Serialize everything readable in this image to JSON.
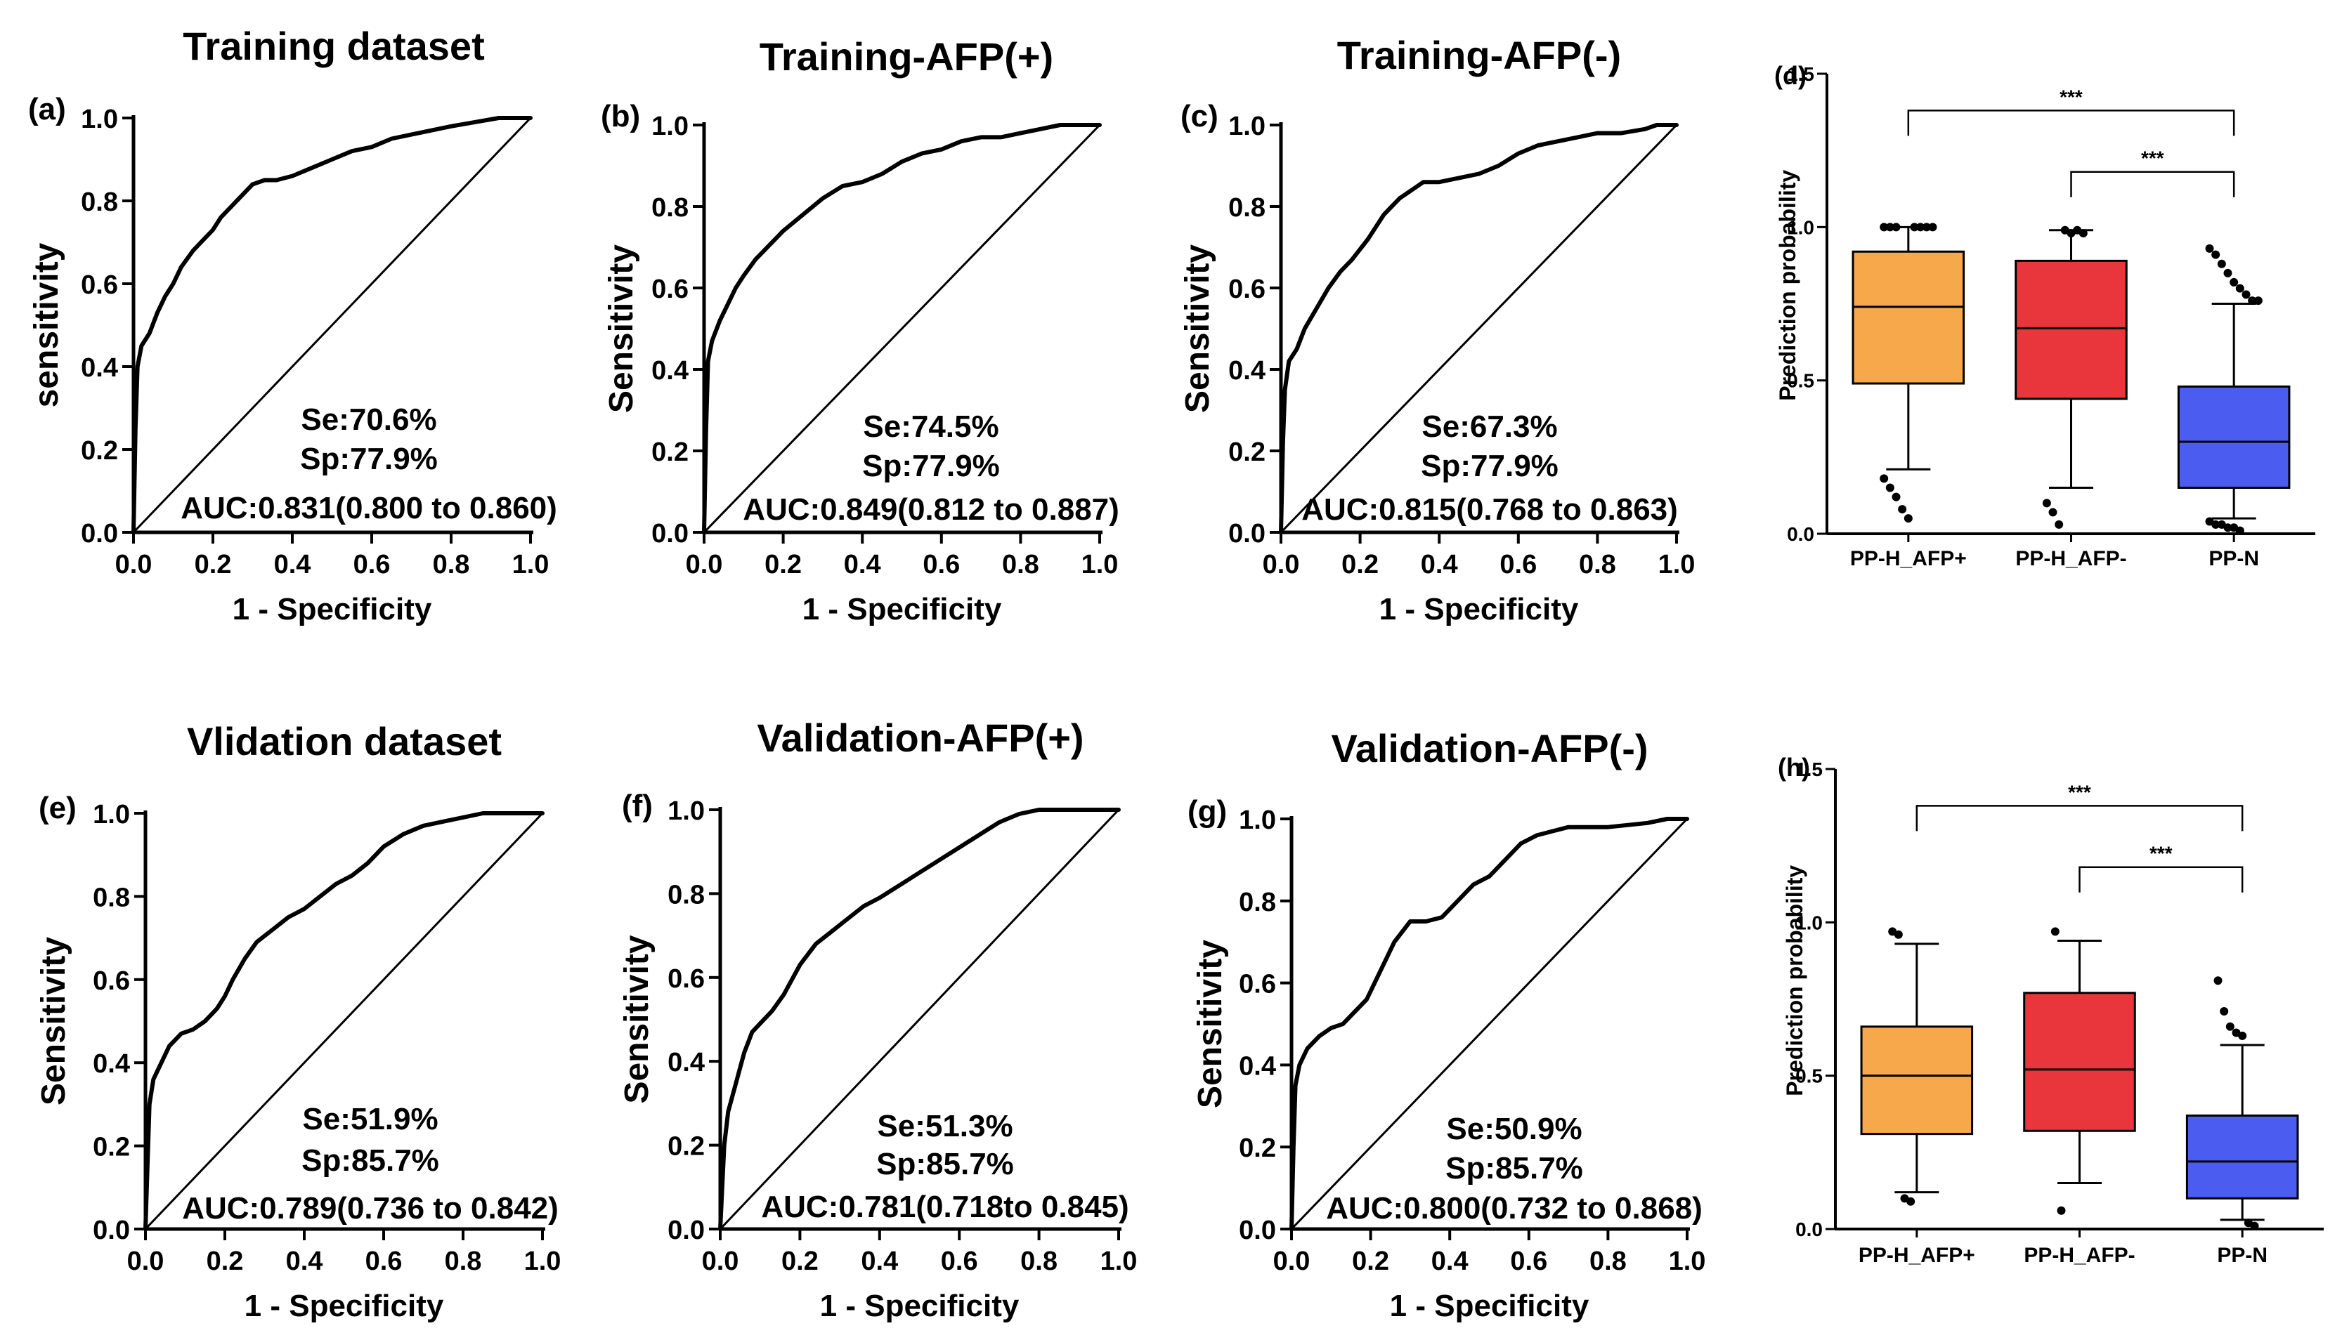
{
  "chart_data": [
    {
      "panel": "(a)",
      "type": "line",
      "title": "Training dataset",
      "xlabel": "1 - Specificity",
      "ylabel": "sensitivity",
      "xlim": [
        0,
        1
      ],
      "ylim": [
        0,
        1
      ],
      "ticks": [
        "0.0",
        "0.2",
        "0.4",
        "0.6",
        "0.8",
        "1.0"
      ],
      "stats": [
        "Se:70.6%",
        "Sp:77.9%",
        "AUC:0.831(0.800 to 0.860)"
      ],
      "series": [
        {
          "name": "ROC",
          "x": [
            0,
            0.005,
            0.01,
            0.02,
            0.04,
            0.06,
            0.08,
            0.1,
            0.12,
            0.15,
            0.18,
            0.2,
            0.22,
            0.26,
            0.3,
            0.33,
            0.36,
            0.4,
            0.45,
            0.5,
            0.55,
            0.6,
            0.65,
            0.7,
            0.75,
            0.8,
            0.86,
            0.92,
            1.0
          ],
          "y": [
            0,
            0.25,
            0.4,
            0.45,
            0.48,
            0.53,
            0.57,
            0.6,
            0.64,
            0.68,
            0.71,
            0.73,
            0.76,
            0.8,
            0.84,
            0.85,
            0.85,
            0.86,
            0.88,
            0.9,
            0.92,
            0.93,
            0.95,
            0.96,
            0.97,
            0.98,
            0.99,
            1.0,
            1.0
          ]
        },
        {
          "name": "Reference",
          "x": [
            0,
            1
          ],
          "y": [
            0,
            1
          ]
        }
      ]
    },
    {
      "panel": "(b)",
      "type": "line",
      "title": "Training-AFP(+)",
      "xlabel": "1 - Specificity",
      "ylabel": "Sensitivity",
      "xlim": [
        0,
        1
      ],
      "ylim": [
        0,
        1
      ],
      "ticks": [
        "0.0",
        "0.2",
        "0.4",
        "0.6",
        "0.8",
        "1.0"
      ],
      "stats": [
        "Se:74.5%",
        "Sp:77.9%",
        "AUC:0.849(0.812 to 0.887)"
      ],
      "series": [
        {
          "name": "ROC",
          "x": [
            0,
            0.005,
            0.01,
            0.02,
            0.04,
            0.06,
            0.08,
            0.1,
            0.13,
            0.16,
            0.2,
            0.25,
            0.3,
            0.35,
            0.4,
            0.45,
            0.5,
            0.55,
            0.6,
            0.65,
            0.7,
            0.75,
            0.8,
            0.85,
            0.9,
            1.0
          ],
          "y": [
            0,
            0.25,
            0.42,
            0.47,
            0.52,
            0.56,
            0.6,
            0.63,
            0.67,
            0.7,
            0.74,
            0.78,
            0.82,
            0.85,
            0.86,
            0.88,
            0.91,
            0.93,
            0.94,
            0.96,
            0.97,
            0.97,
            0.98,
            0.99,
            1.0,
            1.0
          ]
        },
        {
          "name": "Reference",
          "x": [
            0,
            1
          ],
          "y": [
            0,
            1
          ]
        }
      ]
    },
    {
      "panel": "(c)",
      "type": "line",
      "title": "Training-AFP(-)",
      "xlabel": "1 - Specificity",
      "ylabel": "Sensitivity",
      "xlim": [
        0,
        1
      ],
      "ylim": [
        0,
        1
      ],
      "ticks": [
        "0.0",
        "0.2",
        "0.4",
        "0.6",
        "0.8",
        "1.0"
      ],
      "stats": [
        "Se:67.3%",
        "Sp:77.9%",
        "AUC:0.815(0.768 to 0.863)"
      ],
      "series": [
        {
          "name": "ROC",
          "x": [
            0,
            0.005,
            0.01,
            0.02,
            0.04,
            0.06,
            0.09,
            0.12,
            0.15,
            0.18,
            0.22,
            0.26,
            0.3,
            0.33,
            0.36,
            0.4,
            0.45,
            0.5,
            0.55,
            0.6,
            0.65,
            0.7,
            0.75,
            0.8,
            0.86,
            0.92,
            0.95,
            1.0
          ],
          "y": [
            0,
            0.22,
            0.35,
            0.42,
            0.45,
            0.5,
            0.55,
            0.6,
            0.64,
            0.67,
            0.72,
            0.78,
            0.82,
            0.84,
            0.86,
            0.86,
            0.87,
            0.88,
            0.9,
            0.93,
            0.95,
            0.96,
            0.97,
            0.98,
            0.98,
            0.99,
            1.0,
            1.0
          ]
        },
        {
          "name": "Reference",
          "x": [
            0,
            1
          ],
          "y": [
            0,
            1
          ]
        }
      ]
    },
    {
      "panel": "(d)",
      "type": "box",
      "ylabel": "Prediction probability",
      "ylim": [
        0,
        1.5
      ],
      "ticks": [
        "0.0",
        "0.5",
        "1.0",
        "1.5"
      ],
      "categories": [
        "PP-H_AFP+",
        "PP-H_AFP-",
        "PP-N"
      ],
      "colors": [
        "#f7a84a",
        "#e8363c",
        "#4b5cf0"
      ],
      "boxes": [
        {
          "whisker_low": 0.21,
          "q1": 0.49,
          "median": 0.74,
          "q3": 0.92,
          "whisker_high": 1.0,
          "outliers": [
            0.18,
            0.15,
            0.12,
            0.08,
            0.05,
            1.0,
            1.0,
            1.0,
            1.0,
            1.0,
            1.0,
            1.0
          ]
        },
        {
          "whisker_low": 0.15,
          "q1": 0.44,
          "median": 0.67,
          "q3": 0.89,
          "whisker_high": 0.99,
          "outliers": [
            0.1,
            0.07,
            0.03,
            0.99,
            0.98,
            0.99,
            0.98
          ]
        },
        {
          "whisker_low": 0.05,
          "q1": 0.15,
          "median": 0.3,
          "q3": 0.48,
          "whisker_high": 0.75,
          "outliers": [
            0.93,
            0.91,
            0.88,
            0.85,
            0.82,
            0.8,
            0.78,
            0.76,
            0.76,
            0.04,
            0.03,
            0.03,
            0.02,
            0.02,
            0.01
          ]
        }
      ],
      "significance": [
        {
          "from": "PP-H_AFP+",
          "to": "PP-N",
          "label": "***"
        },
        {
          "from": "PP-H_AFP-",
          "to": "PP-N",
          "label": "***"
        }
      ]
    },
    {
      "panel": "(e)",
      "type": "line",
      "title": "Vlidation dataset",
      "xlabel": "1 - Specificity",
      "ylabel": "Sensitivity",
      "xlim": [
        0,
        1
      ],
      "ylim": [
        0,
        1
      ],
      "ticks": [
        "0.0",
        "0.2",
        "0.4",
        "0.6",
        "0.8",
        "1.0"
      ],
      "stats": [
        "Se:51.9%",
        "Sp:85.7%",
        "AUC:0.789(0.736 to 0.842)"
      ],
      "series": [
        {
          "name": "ROC",
          "x": [
            0,
            0.005,
            0.01,
            0.02,
            0.04,
            0.06,
            0.09,
            0.12,
            0.15,
            0.18,
            0.2,
            0.22,
            0.25,
            0.28,
            0.32,
            0.36,
            0.4,
            0.44,
            0.48,
            0.52,
            0.56,
            0.6,
            0.65,
            0.7,
            0.75,
            0.8,
            0.85,
            0.9,
            1.0
          ],
          "y": [
            0,
            0.15,
            0.3,
            0.36,
            0.4,
            0.44,
            0.47,
            0.48,
            0.5,
            0.53,
            0.56,
            0.6,
            0.65,
            0.69,
            0.72,
            0.75,
            0.77,
            0.8,
            0.83,
            0.85,
            0.88,
            0.92,
            0.95,
            0.97,
            0.98,
            0.99,
            1.0,
            1.0,
            1.0
          ]
        },
        {
          "name": "Reference",
          "x": [
            0,
            1
          ],
          "y": [
            0,
            1
          ]
        }
      ]
    },
    {
      "panel": "(f)",
      "type": "line",
      "title": "Validation-AFP(+)",
      "xlabel": "1 - Specificity",
      "ylabel": "Sensitivity",
      "xlim": [
        0,
        1
      ],
      "ylim": [
        0,
        1
      ],
      "ticks": [
        "0.0",
        "0.2",
        "0.4",
        "0.6",
        "0.8",
        "1.0"
      ],
      "stats": [
        "Se:51.3%",
        "Sp:85.7%",
        "AUC:0.781(0.718to 0.845)"
      ],
      "series": [
        {
          "name": "ROC",
          "x": [
            0,
            0.005,
            0.01,
            0.02,
            0.04,
            0.06,
            0.08,
            0.1,
            0.13,
            0.16,
            0.2,
            0.24,
            0.28,
            0.32,
            0.36,
            0.4,
            0.45,
            0.5,
            0.55,
            0.6,
            0.65,
            0.7,
            0.75,
            0.8,
            1.0
          ],
          "y": [
            0,
            0.1,
            0.2,
            0.28,
            0.35,
            0.42,
            0.47,
            0.49,
            0.52,
            0.56,
            0.63,
            0.68,
            0.71,
            0.74,
            0.77,
            0.79,
            0.82,
            0.85,
            0.88,
            0.91,
            0.94,
            0.97,
            0.99,
            1.0,
            1.0
          ]
        },
        {
          "name": "Reference",
          "x": [
            0,
            1
          ],
          "y": [
            0,
            1
          ]
        }
      ]
    },
    {
      "panel": "(g)",
      "type": "line",
      "title": "Validation-AFP(-)",
      "xlabel": "1 - Specificity",
      "ylabel": "Sensitivity",
      "xlim": [
        0,
        1
      ],
      "ylim": [
        0,
        1
      ],
      "ticks": [
        "0.0",
        "0.2",
        "0.4",
        "0.6",
        "0.8",
        "1.0"
      ],
      "stats": [
        "Se:50.9%",
        "Sp:85.7%",
        "AUC:0.800(0.732 to 0.868)"
      ],
      "series": [
        {
          "name": "ROC",
          "x": [
            0,
            0.005,
            0.01,
            0.02,
            0.04,
            0.07,
            0.1,
            0.13,
            0.16,
            0.19,
            0.22,
            0.26,
            0.3,
            0.34,
            0.38,
            0.42,
            0.46,
            0.5,
            0.54,
            0.58,
            0.62,
            0.66,
            0.7,
            0.8,
            0.9,
            0.95,
            1.0
          ],
          "y": [
            0,
            0.2,
            0.35,
            0.4,
            0.44,
            0.47,
            0.49,
            0.5,
            0.53,
            0.56,
            0.62,
            0.7,
            0.75,
            0.75,
            0.76,
            0.8,
            0.84,
            0.86,
            0.9,
            0.94,
            0.96,
            0.97,
            0.98,
            0.98,
            0.99,
            1.0,
            1.0
          ]
        },
        {
          "name": "Reference",
          "x": [
            0,
            1
          ],
          "y": [
            0,
            1
          ]
        }
      ]
    },
    {
      "panel": "(h)",
      "type": "box",
      "ylabel": "Prediction probability",
      "ylim": [
        0,
        1.5
      ],
      "ticks": [
        "0.0",
        "0.5",
        "1.0",
        "1.5"
      ],
      "categories": [
        "PP-H_AFP+",
        "PP-H_AFP-",
        "PP-N"
      ],
      "colors": [
        "#f7a84a",
        "#e8363c",
        "#4b5cf0"
      ],
      "boxes": [
        {
          "whisker_low": 0.12,
          "q1": 0.31,
          "median": 0.5,
          "q3": 0.66,
          "whisker_high": 0.93,
          "outliers": [
            0.97,
            0.96,
            0.1,
            0.09
          ]
        },
        {
          "whisker_low": 0.15,
          "q1": 0.32,
          "median": 0.52,
          "q3": 0.77,
          "whisker_high": 0.94,
          "outliers": [
            0.97,
            0.06
          ]
        },
        {
          "whisker_low": 0.03,
          "q1": 0.1,
          "median": 0.22,
          "q3": 0.37,
          "whisker_high": 0.6,
          "outliers": [
            0.81,
            0.71,
            0.66,
            0.64,
            0.63,
            0.02,
            0.01
          ]
        }
      ],
      "significance": [
        {
          "from": "PP-H_AFP+",
          "to": "PP-N",
          "label": "***"
        },
        {
          "from": "PP-H_AFP-",
          "to": "PP-N",
          "label": "***"
        }
      ]
    }
  ]
}
